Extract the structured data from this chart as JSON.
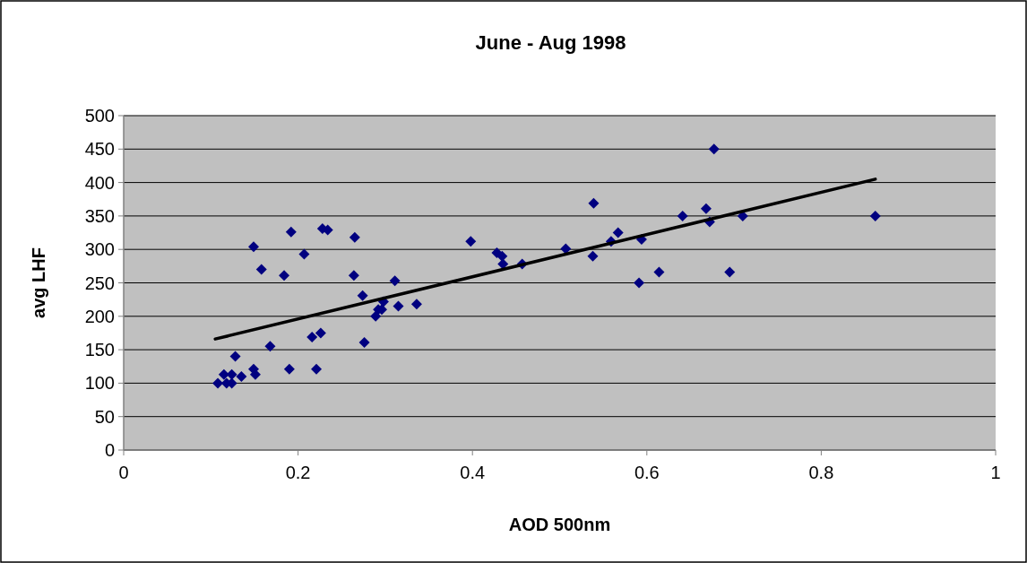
{
  "chart_data": {
    "type": "scatter",
    "title": "June - Aug 1998",
    "xlabel": "AOD 500nm",
    "ylabel": "avg LHF",
    "xlim": [
      0,
      1
    ],
    "xticks": [
      0,
      0.2,
      0.4,
      0.6,
      0.8,
      1
    ],
    "ylim": [
      0,
      500
    ],
    "yticks": [
      0,
      50,
      100,
      150,
      200,
      250,
      300,
      350,
      400,
      450,
      500
    ],
    "grid": "y",
    "marker": "diamond",
    "series": [
      {
        "color": "#000080",
        "x": [
          0.108,
          0.115,
          0.118,
          0.124,
          0.124,
          0.128,
          0.135,
          0.149,
          0.151,
          0.149,
          0.158,
          0.168,
          0.184,
          0.19,
          0.192,
          0.207,
          0.216,
          0.221,
          0.226,
          0.228,
          0.234,
          0.264,
          0.265,
          0.274,
          0.276,
          0.289,
          0.292,
          0.296,
          0.298,
          0.311,
          0.315,
          0.336,
          0.398,
          0.428,
          0.434,
          0.435,
          0.457,
          0.507,
          0.538,
          0.539,
          0.559,
          0.567,
          0.591,
          0.594,
          0.614,
          0.641,
          0.668,
          0.672,
          0.677,
          0.695,
          0.71,
          0.862
        ],
        "values": [
          100,
          113,
          100,
          113,
          100,
          140,
          110,
          121,
          113,
          304,
          270,
          155,
          261,
          121,
          326,
          293,
          169,
          121,
          175,
          331,
          329,
          261,
          318,
          231,
          161,
          200,
          210,
          210,
          222,
          253,
          215,
          218,
          312,
          295,
          290,
          278,
          278,
          301,
          290,
          369,
          312,
          325,
          250,
          315,
          266,
          350,
          361,
          341,
          450,
          266,
          350,
          350
        ]
      },
      {
        "type": "line",
        "color": "#000000",
        "marker": "none",
        "x": [
          0.105,
          0.862
        ],
        "values": [
          166,
          405
        ]
      }
    ]
  }
}
